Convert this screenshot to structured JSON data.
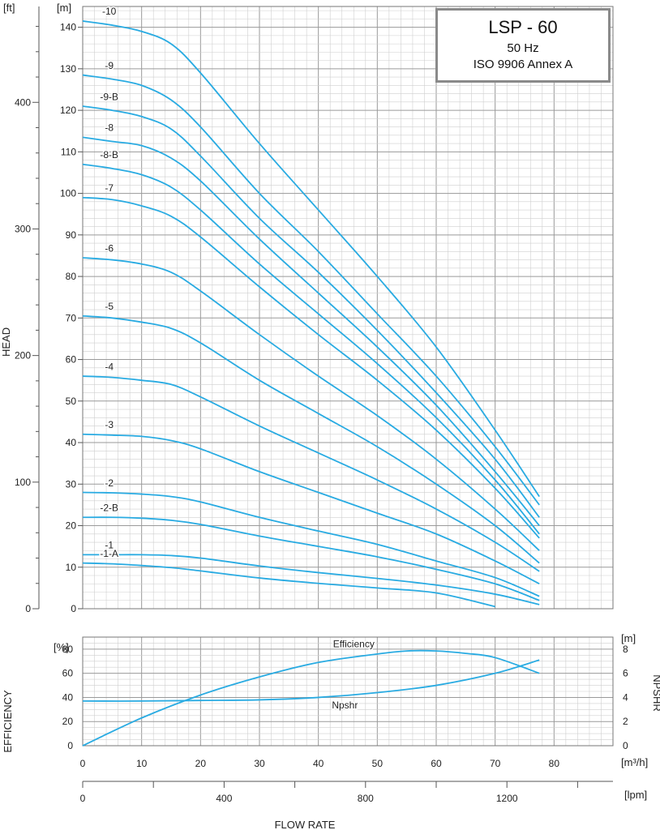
{
  "title_box": {
    "model": "LSP - 60",
    "frequency": "50 Hz",
    "standard": "ISO 9906 Annex A"
  },
  "axis_titles": {
    "head": "HEAD",
    "efficiency": "EFFICIENCY",
    "npshr": "NPSHR",
    "flow_rate": "FLOW RATE"
  },
  "units": {
    "head_ft": "[ft]",
    "head_m": "[m]",
    "eff": "[%]",
    "npshr": "[m]",
    "flow_m3h": "[m³/h]",
    "flow_lpm": "[lpm]"
  },
  "colors": {
    "curve": "#29abe2",
    "grid_major": "#9a9a9a",
    "grid_minor": "#cfcfcf"
  },
  "chart_data": [
    {
      "type": "line",
      "name": "head",
      "xlim": [
        0,
        90
      ],
      "ylim": [
        0,
        145
      ],
      "x_ticks": [
        0,
        10,
        20,
        30,
        40,
        50,
        60,
        70,
        80
      ],
      "y_ticks_m": [
        0,
        10,
        20,
        30,
        40,
        50,
        60,
        70,
        80,
        90,
        100,
        110,
        120,
        130,
        140
      ],
      "y_ticks_ft": [
        0,
        100,
        200,
        300,
        400
      ],
      "series": [
        {
          "name": "-10",
          "points": [
            [
              0,
              141.5
            ],
            [
              5,
              140.5
            ],
            [
              10,
              139
            ],
            [
              15,
              136
            ],
            [
              20,
              129
            ],
            [
              30,
              112
            ],
            [
              40,
              96
            ],
            [
              50,
              80
            ],
            [
              60,
              63
            ],
            [
              70,
              43
            ],
            [
              77.5,
              27
            ]
          ]
        },
        {
          "name": "-9",
          "points": [
            [
              0,
              128.5
            ],
            [
              5,
              127.5
            ],
            [
              10,
              126
            ],
            [
              15,
              122.5
            ],
            [
              20,
              116
            ],
            [
              30,
              100
            ],
            [
              40,
              86
            ],
            [
              50,
              71
            ],
            [
              60,
              56
            ],
            [
              70,
              39
            ],
            [
              77.5,
              25
            ]
          ]
        },
        {
          "name": "-9-B",
          "points": [
            [
              0,
              121
            ],
            [
              5,
              120
            ],
            [
              10,
              118.5
            ],
            [
              15,
              115.5
            ],
            [
              20,
              109
            ],
            [
              30,
              94
            ],
            [
              40,
              81
            ],
            [
              50,
              67
            ],
            [
              60,
              52
            ],
            [
              70,
              36
            ],
            [
              77.5,
              22
            ]
          ]
        },
        {
          "name": "-8",
          "points": [
            [
              0,
              113.5
            ],
            [
              5,
              112.5
            ],
            [
              10,
              111.5
            ],
            [
              15,
              108.5
            ],
            [
              20,
              103
            ],
            [
              30,
              89
            ],
            [
              40,
              76
            ],
            [
              50,
              63
            ],
            [
              60,
              49
            ],
            [
              70,
              33
            ],
            [
              77.5,
              20
            ]
          ]
        },
        {
          "name": "-8-B",
          "points": [
            [
              0,
              107
            ],
            [
              5,
              106
            ],
            [
              10,
              104.5
            ],
            [
              15,
              101.5
            ],
            [
              20,
              96
            ],
            [
              30,
              83
            ],
            [
              40,
              71
            ],
            [
              50,
              59
            ],
            [
              60,
              46
            ],
            [
              70,
              31
            ],
            [
              77.5,
              18
            ]
          ]
        },
        {
          "name": "-7",
          "points": [
            [
              0,
              99
            ],
            [
              5,
              98.5
            ],
            [
              10,
              97
            ],
            [
              15,
              94.5
            ],
            [
              20,
              89.5
            ],
            [
              30,
              77.5
            ],
            [
              40,
              66
            ],
            [
              50,
              55
            ],
            [
              60,
              43
            ],
            [
              70,
              29
            ],
            [
              77.5,
              17
            ]
          ]
        },
        {
          "name": "-6",
          "points": [
            [
              0,
              84.5
            ],
            [
              5,
              84
            ],
            [
              10,
              83
            ],
            [
              15,
              81
            ],
            [
              20,
              76.5
            ],
            [
              30,
              66
            ],
            [
              40,
              56
            ],
            [
              50,
              46.5
            ],
            [
              60,
              36
            ],
            [
              70,
              24
            ],
            [
              77.5,
              14
            ]
          ]
        },
        {
          "name": "-5",
          "points": [
            [
              0,
              70.5
            ],
            [
              5,
              70
            ],
            [
              10,
              69
            ],
            [
              15,
              67.5
            ],
            [
              20,
              64
            ],
            [
              30,
              55
            ],
            [
              40,
              47
            ],
            [
              50,
              39
            ],
            [
              60,
              30
            ],
            [
              70,
              20
            ],
            [
              77.5,
              11
            ]
          ]
        },
        {
          "name": "-4",
          "points": [
            [
              0,
              56
            ],
            [
              5,
              55.7
            ],
            [
              10,
              55
            ],
            [
              15,
              54
            ],
            [
              20,
              51
            ],
            [
              30,
              44
            ],
            [
              40,
              37.5
            ],
            [
              50,
              31
            ],
            [
              60,
              24
            ],
            [
              70,
              16
            ],
            [
              77.5,
              9
            ]
          ]
        },
        {
          "name": "-3",
          "points": [
            [
              0,
              42
            ],
            [
              5,
              41.8
            ],
            [
              10,
              41.5
            ],
            [
              15,
              40.5
            ],
            [
              20,
              38.5
            ],
            [
              30,
              33
            ],
            [
              40,
              28
            ],
            [
              50,
              23
            ],
            [
              60,
              18
            ],
            [
              70,
              11.5
            ],
            [
              77.5,
              6
            ]
          ]
        },
        {
          "name": "-2",
          "points": [
            [
              0,
              28
            ],
            [
              5,
              27.9
            ],
            [
              10,
              27.6
            ],
            [
              15,
              27
            ],
            [
              20,
              25.7
            ],
            [
              30,
              22
            ],
            [
              40,
              18.7
            ],
            [
              50,
              15.5
            ],
            [
              60,
              11.5
            ],
            [
              70,
              7.5
            ],
            [
              77.5,
              3
            ]
          ]
        },
        {
          "name": "-2-B",
          "points": [
            [
              0,
              22
            ],
            [
              5,
              22
            ],
            [
              10,
              21.8
            ],
            [
              15,
              21.3
            ],
            [
              20,
              20.3
            ],
            [
              30,
              17.5
            ],
            [
              40,
              15
            ],
            [
              50,
              12.5
            ],
            [
              60,
              9.5
            ],
            [
              70,
              6
            ],
            [
              77.5,
              2
            ]
          ]
        },
        {
          "name": "-1",
          "points": [
            [
              0,
              13
            ],
            [
              5,
              13
            ],
            [
              10,
              13
            ],
            [
              15,
              12.8
            ],
            [
              20,
              12.2
            ],
            [
              30,
              10.3
            ],
            [
              40,
              8.7
            ],
            [
              50,
              7.3
            ],
            [
              60,
              5.7
            ],
            [
              70,
              3.5
            ],
            [
              77.5,
              1
            ]
          ]
        },
        {
          "name": "-1-A",
          "points": [
            [
              0,
              11
            ],
            [
              5,
              10.8
            ],
            [
              10,
              10.4
            ],
            [
              15,
              9.9
            ],
            [
              20,
              9.1
            ],
            [
              30,
              7.4
            ],
            [
              40,
              6.1
            ],
            [
              50,
              5
            ],
            [
              60,
              3.8
            ],
            [
              70,
              0.5
            ]
          ]
        }
      ]
    },
    {
      "type": "line",
      "name": "efficiency_npshr",
      "xlim": [
        0,
        90
      ],
      "ylim_left": [
        0,
        90
      ],
      "y_ticks_left": [
        0,
        20,
        40,
        60,
        80
      ],
      "ylim_right": [
        0,
        9
      ],
      "y_ticks_right": [
        0,
        2,
        4,
        6,
        8
      ],
      "x_ticks": [
        0,
        10,
        20,
        30,
        40,
        50,
        60,
        70,
        80
      ],
      "series": [
        {
          "name": "Efficiency",
          "axis": "left",
          "points": [
            [
              0,
              0
            ],
            [
              10,
              23
            ],
            [
              20,
              42
            ],
            [
              30,
              57
            ],
            [
              40,
              69
            ],
            [
              50,
              76
            ],
            [
              55,
              78.5
            ],
            [
              60,
              78.5
            ],
            [
              65,
              76.5
            ],
            [
              70,
              73
            ],
            [
              77.5,
              60
            ]
          ]
        },
        {
          "name": "Npshr",
          "axis": "right",
          "points": [
            [
              0,
              3.7
            ],
            [
              10,
              3.7
            ],
            [
              20,
              3.75
            ],
            [
              30,
              3.8
            ],
            [
              40,
              4
            ],
            [
              50,
              4.4
            ],
            [
              60,
              5
            ],
            [
              70,
              6
            ],
            [
              77.5,
              7.1
            ]
          ]
        }
      ]
    },
    {
      "type": "axis",
      "name": "flow_lpm",
      "ticks": [
        0,
        400,
        800,
        1200
      ]
    }
  ]
}
